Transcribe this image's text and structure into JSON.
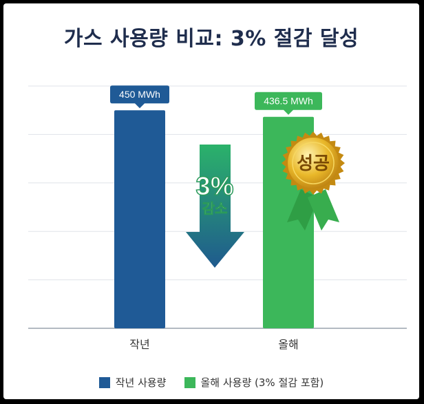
{
  "title": "가스 사용량 비교: 3% 절감 달성",
  "chart_data": {
    "type": "bar",
    "categories": [
      "작년",
      "올해"
    ],
    "values": [
      450,
      436.5
    ],
    "value_labels": [
      "450 MWh",
      "436.5 MWh"
    ],
    "unit": "MWh",
    "ylim": [
      0,
      500
    ],
    "grid": true,
    "legend_position": "bottom",
    "series": [
      {
        "name": "작년 사용량",
        "color": "#1f5a96"
      },
      {
        "name": "올해 사용량 (3% 절감 포함)",
        "color": "#3cb75a"
      }
    ],
    "annotations": {
      "reduction_percent": "3%",
      "reduction_label": "감소",
      "badge_label": "성공"
    }
  },
  "colors": {
    "last_year": "#1f5a96",
    "this_year": "#3cb75a",
    "arrow_top": "#2bb26a",
    "arrow_bottom": "#1f5a8e",
    "medal": "#e2a91e",
    "ribbon": "#2f9e45"
  }
}
